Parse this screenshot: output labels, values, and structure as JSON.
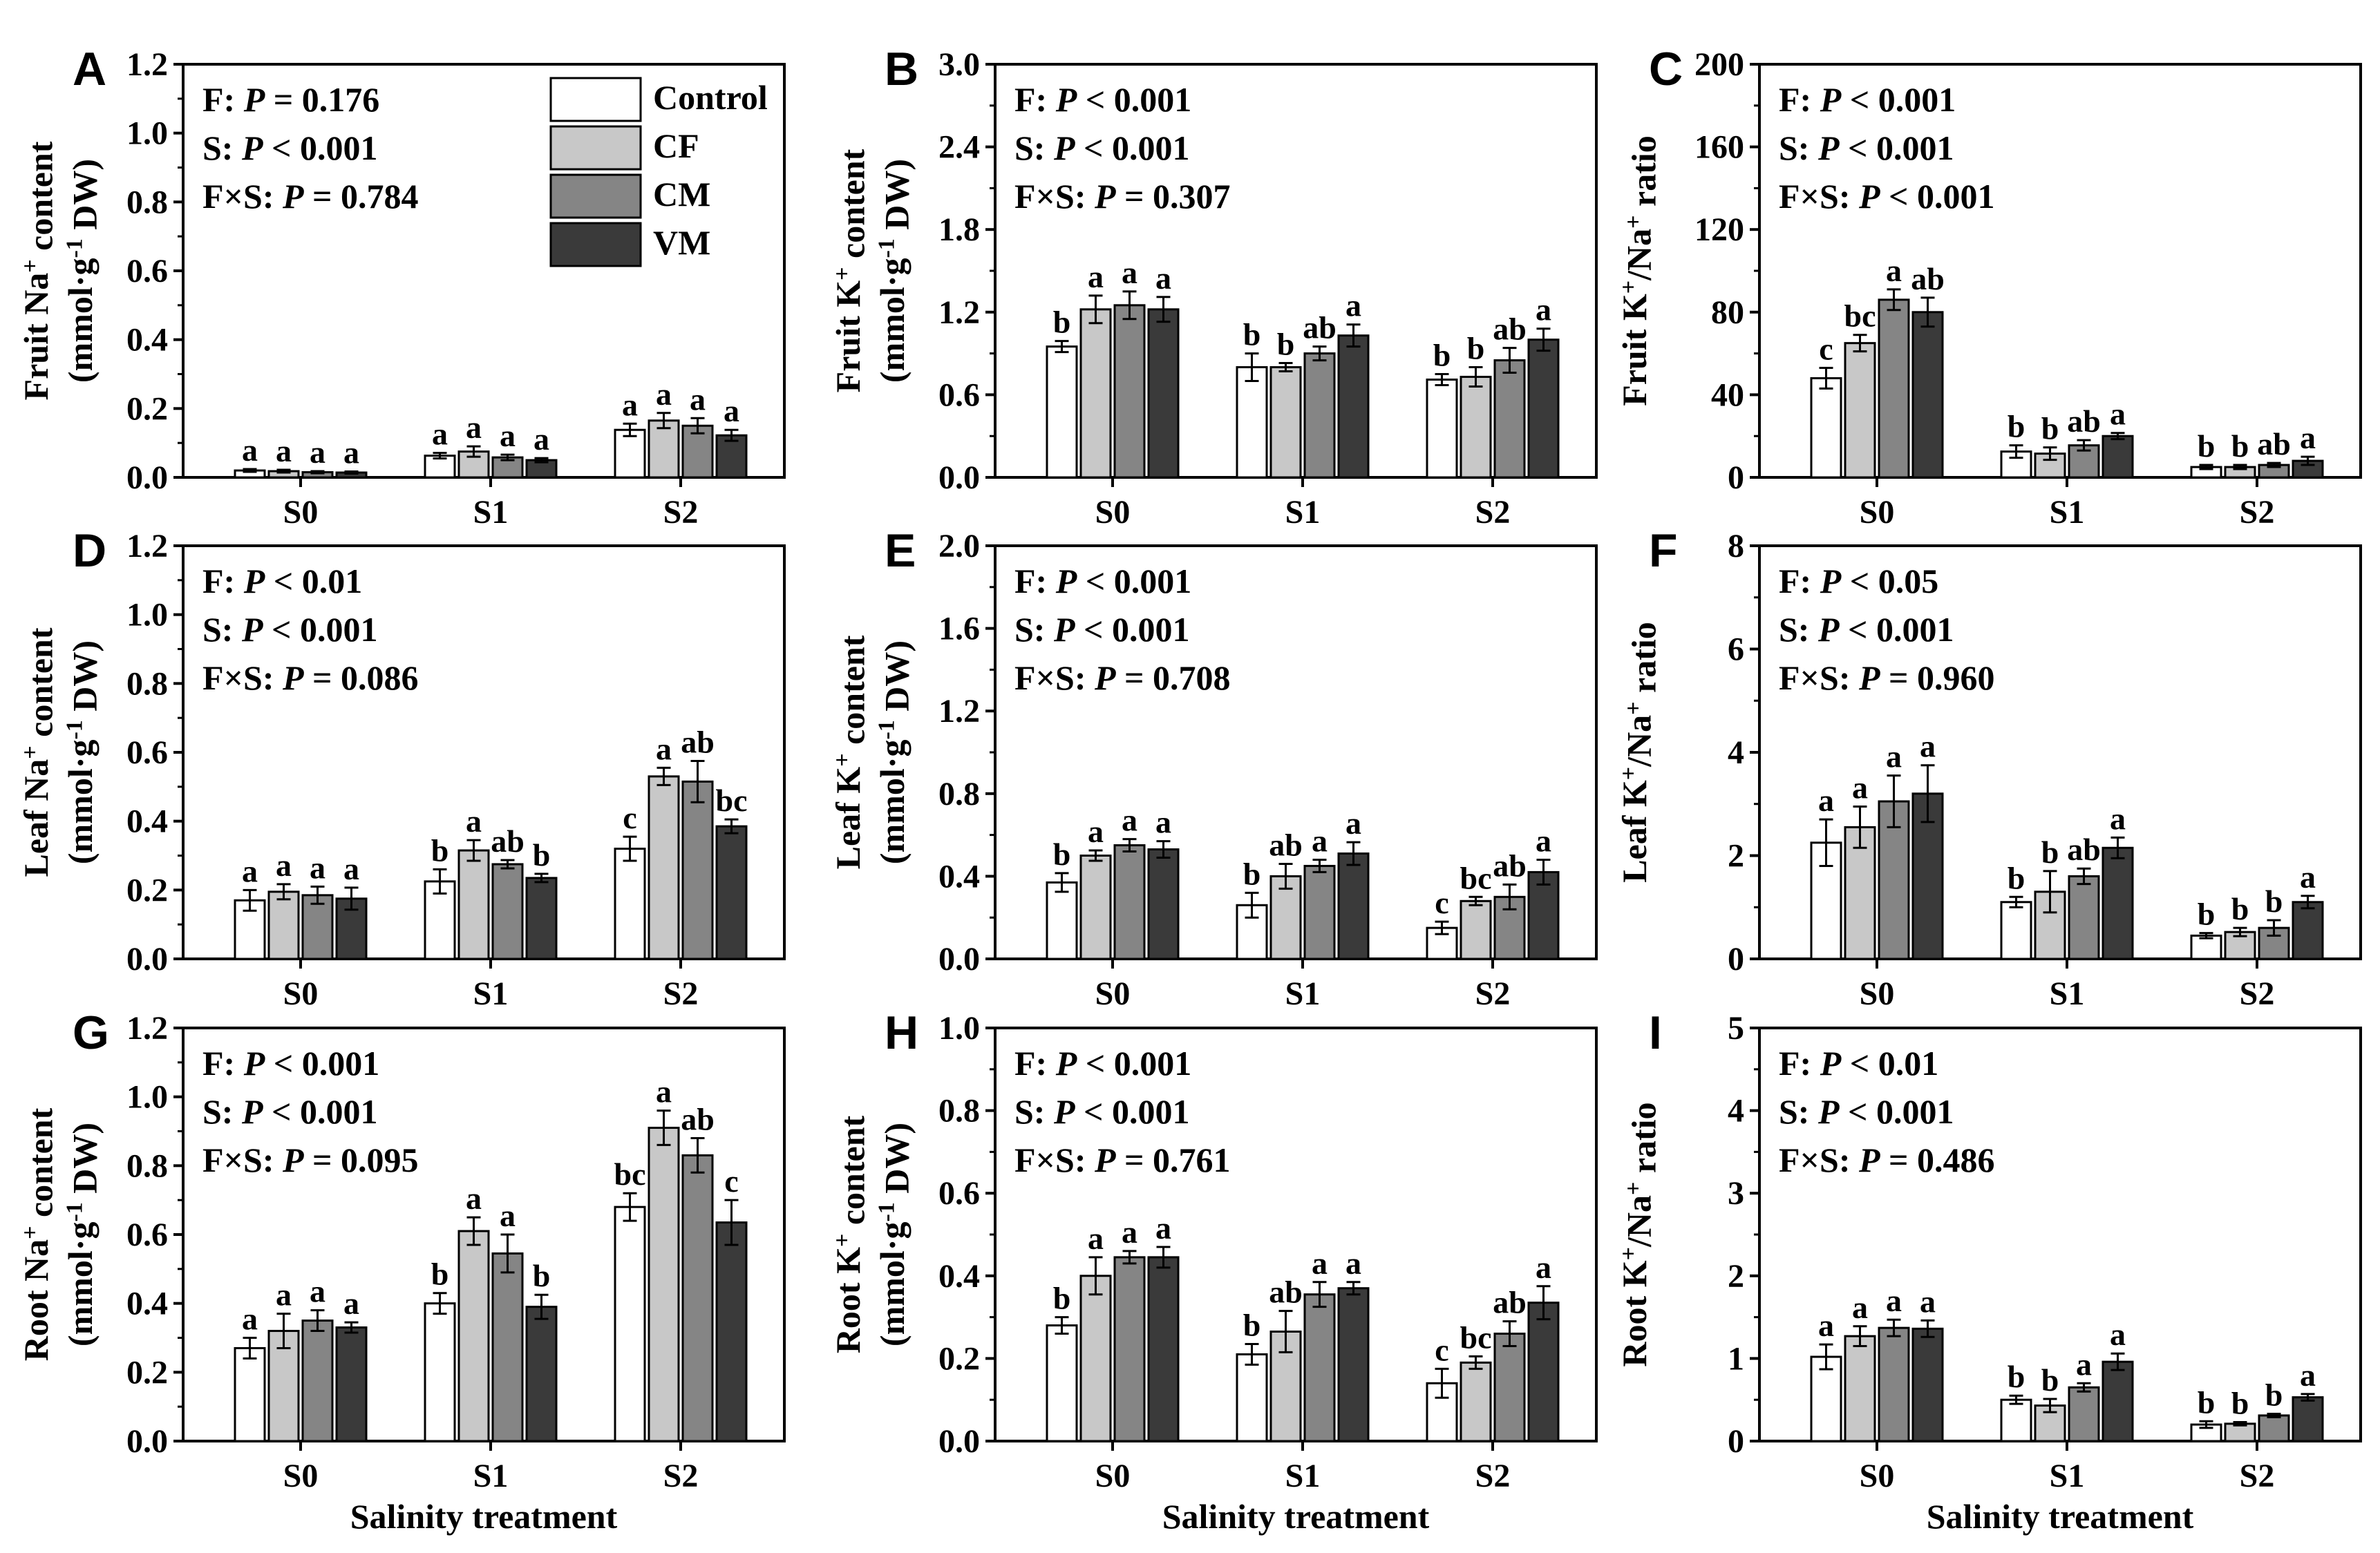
{
  "legend": {
    "series": [
      {
        "name": "Control",
        "color": "#ffffff"
      },
      {
        "name": "CF",
        "color": "#c8c8c8"
      },
      {
        "name": "CM",
        "color": "#858585"
      },
      {
        "name": "VM",
        "color": "#3a3a3a"
      }
    ]
  },
  "colors": {
    "stroke": "#000000",
    "background": "#ffffff"
  },
  "xlabel": "Salinity treatment",
  "chart_data": [
    {
      "panel": "A",
      "type": "bar",
      "title": "",
      "ylabel": [
        "Fruit Na+ content",
        "(mmol·g-1 DW)"
      ],
      "ylim": [
        0,
        1.2
      ],
      "yticks": [
        "0.0",
        "0.2",
        "0.4",
        "0.6",
        "0.8",
        "1.0",
        "1.2"
      ],
      "categories": [
        "S0",
        "S1",
        "S2"
      ],
      "stats": [
        {
          "label": "F: ",
          "sym": "P",
          "rel": " = 0.176"
        },
        {
          "label": "S: ",
          "sym": "P",
          "rel": " < 0.001"
        },
        {
          "label": "F×S: ",
          "sym": "P",
          "rel": " = 0.784"
        }
      ],
      "series": [
        {
          "name": "Control",
          "values": [
            0.02,
            0.063,
            0.138
          ],
          "errors": [
            0.004,
            0.008,
            0.018
          ],
          "letters": [
            "a",
            "a",
            "a"
          ]
        },
        {
          "name": "CF",
          "values": [
            0.018,
            0.075,
            0.165
          ],
          "errors": [
            0.004,
            0.015,
            0.022
          ],
          "letters": [
            "a",
            "a",
            "a"
          ]
        },
        {
          "name": "CM",
          "values": [
            0.015,
            0.058,
            0.15
          ],
          "errors": [
            0.003,
            0.008,
            0.022
          ],
          "letters": [
            "a",
            "a",
            "a"
          ]
        },
        {
          "name": "VM",
          "values": [
            0.014,
            0.05,
            0.122
          ],
          "errors": [
            0.003,
            0.006,
            0.016
          ],
          "letters": [
            "a",
            "a",
            "a"
          ]
        }
      ]
    },
    {
      "panel": "B",
      "type": "bar",
      "title": "",
      "ylabel": [
        "Fruit K+ content",
        "(mmol·g-1 DW)"
      ],
      "ylim": [
        0,
        3.0
      ],
      "yticks": [
        "0.0",
        "0.6",
        "1.2",
        "1.8",
        "2.4",
        "3.0"
      ],
      "categories": [
        "S0",
        "S1",
        "S2"
      ],
      "stats": [
        {
          "label": "F: ",
          "sym": "P",
          "rel": " < 0.001"
        },
        {
          "label": "S: ",
          "sym": "P",
          "rel": " < 0.001"
        },
        {
          "label": "F×S: ",
          "sym": "P",
          "rel": " = 0.307"
        }
      ],
      "series": [
        {
          "name": "Control",
          "values": [
            0.95,
            0.8,
            0.71
          ],
          "errors": [
            0.04,
            0.1,
            0.04
          ],
          "letters": [
            "b",
            "b",
            "b"
          ]
        },
        {
          "name": "CF",
          "values": [
            1.22,
            0.8,
            0.73
          ],
          "errors": [
            0.1,
            0.03,
            0.07
          ],
          "letters": [
            "a",
            "b",
            "b"
          ]
        },
        {
          "name": "CM",
          "values": [
            1.25,
            0.9,
            0.85
          ],
          "errors": [
            0.1,
            0.05,
            0.09
          ],
          "letters": [
            "a",
            "ab",
            "ab"
          ]
        },
        {
          "name": "VM",
          "values": [
            1.22,
            1.03,
            1.0
          ],
          "errors": [
            0.09,
            0.08,
            0.08
          ],
          "letters": [
            "a",
            "a",
            "a"
          ]
        }
      ]
    },
    {
      "panel": "C",
      "type": "bar",
      "title": "",
      "ylabel": [
        "Fruit K+/Na+ ratio"
      ],
      "ylim": [
        0,
        200
      ],
      "yticks": [
        "0",
        "40",
        "80",
        "120",
        "160",
        "200"
      ],
      "categories": [
        "S0",
        "S1",
        "S2"
      ],
      "stats": [
        {
          "label": "F: ",
          "sym": "P",
          "rel": " < 0.001"
        },
        {
          "label": "S: ",
          "sym": "P",
          "rel": " < 0.001"
        },
        {
          "label": "F×S: ",
          "sym": "P",
          "rel": " < 0.001"
        }
      ],
      "series": [
        {
          "name": "Control",
          "values": [
            48,
            12.5,
            5
          ],
          "errors": [
            5,
            3,
            1
          ],
          "letters": [
            "c",
            "b",
            "b"
          ]
        },
        {
          "name": "CF",
          "values": [
            65,
            11.5,
            5
          ],
          "errors": [
            4,
            3,
            1
          ],
          "letters": [
            "bc",
            "b",
            "b"
          ]
        },
        {
          "name": "CM",
          "values": [
            86,
            15.5,
            6
          ],
          "errors": [
            5,
            2.5,
            1
          ],
          "letters": [
            "a",
            "ab",
            "ab"
          ]
        },
        {
          "name": "VM",
          "values": [
            80,
            20,
            8
          ],
          "errors": [
            7,
            1.5,
            2
          ],
          "letters": [
            "ab",
            "a",
            "a"
          ]
        }
      ]
    },
    {
      "panel": "D",
      "type": "bar",
      "title": "",
      "ylabel": [
        "Leaf Na+ content",
        "(mmol·g-1 DW)"
      ],
      "ylim": [
        0,
        1.2
      ],
      "yticks": [
        "0.0",
        "0.2",
        "0.4",
        "0.6",
        "0.8",
        "1.0",
        "1.2"
      ],
      "categories": [
        "S0",
        "S1",
        "S2"
      ],
      "stats": [
        {
          "label": "F: ",
          "sym": "P",
          "rel": " < 0.01"
        },
        {
          "label": "S: ",
          "sym": "P",
          "rel": " < 0.001"
        },
        {
          "label": "F×S: ",
          "sym": "P",
          "rel": " = 0.086"
        }
      ],
      "series": [
        {
          "name": "Control",
          "values": [
            0.17,
            0.225,
            0.32
          ],
          "errors": [
            0.03,
            0.035,
            0.035
          ],
          "letters": [
            "a",
            "b",
            "c"
          ]
        },
        {
          "name": "CF",
          "values": [
            0.195,
            0.315,
            0.53
          ],
          "errors": [
            0.022,
            0.03,
            0.025
          ],
          "letters": [
            "a",
            "a",
            "a"
          ]
        },
        {
          "name": "CM",
          "values": [
            0.185,
            0.275,
            0.515
          ],
          "errors": [
            0.025,
            0.012,
            0.06
          ],
          "letters": [
            "a",
            "ab",
            "ab"
          ]
        },
        {
          "name": "VM",
          "values": [
            0.175,
            0.235,
            0.385
          ],
          "errors": [
            0.032,
            0.012,
            0.02
          ],
          "letters": [
            "a",
            "b",
            "bc"
          ]
        }
      ]
    },
    {
      "panel": "E",
      "type": "bar",
      "title": "",
      "ylabel": [
        "Leaf K+ content",
        "(mmol·g-1 DW)"
      ],
      "ylim": [
        0,
        2.0
      ],
      "yticks": [
        "0.0",
        "0.4",
        "0.8",
        "1.2",
        "1.6",
        "2.0"
      ],
      "categories": [
        "S0",
        "S1",
        "S2"
      ],
      "stats": [
        {
          "label": "F: ",
          "sym": "P",
          "rel": " < 0.001"
        },
        {
          "label": "S: ",
          "sym": "P",
          "rel": " < 0.001"
        },
        {
          "label": "F×S: ",
          "sym": "P",
          "rel": " = 0.708"
        }
      ],
      "series": [
        {
          "name": "Control",
          "values": [
            0.37,
            0.26,
            0.15
          ],
          "errors": [
            0.045,
            0.06,
            0.03
          ],
          "letters": [
            "b",
            "b",
            "c"
          ]
        },
        {
          "name": "CF",
          "values": [
            0.5,
            0.4,
            0.28
          ],
          "errors": [
            0.025,
            0.06,
            0.02
          ],
          "letters": [
            "a",
            "ab",
            "bc"
          ]
        },
        {
          "name": "CM",
          "values": [
            0.55,
            0.45,
            0.3
          ],
          "errors": [
            0.03,
            0.03,
            0.06
          ],
          "letters": [
            "a",
            "a",
            "ab"
          ]
        },
        {
          "name": "VM",
          "values": [
            0.53,
            0.51,
            0.42
          ],
          "errors": [
            0.04,
            0.055,
            0.06
          ],
          "letters": [
            "a",
            "a",
            "a"
          ]
        }
      ]
    },
    {
      "panel": "F",
      "type": "bar",
      "title": "",
      "ylabel": [
        "Leaf K+/Na+ ratio"
      ],
      "ylim": [
        0,
        8
      ],
      "yticks": [
        "0",
        "2",
        "4",
        "6",
        "8"
      ],
      "categories": [
        "S0",
        "S1",
        "S2"
      ],
      "stats": [
        {
          "label": "F: ",
          "sym": "P",
          "rel": " < 0.05"
        },
        {
          "label": "S: ",
          "sym": "P",
          "rel": " < 0.001"
        },
        {
          "label": "F×S: ",
          "sym": "P",
          "rel": " = 0.960"
        }
      ],
      "series": [
        {
          "name": "Control",
          "values": [
            2.25,
            1.1,
            0.45
          ],
          "errors": [
            0.45,
            0.1,
            0.05
          ],
          "letters": [
            "a",
            "b",
            "b"
          ]
        },
        {
          "name": "CF",
          "values": [
            2.55,
            1.3,
            0.52
          ],
          "errors": [
            0.4,
            0.4,
            0.08
          ],
          "letters": [
            "a",
            "b",
            "b"
          ]
        },
        {
          "name": "CM",
          "values": [
            3.05,
            1.6,
            0.6
          ],
          "errors": [
            0.5,
            0.15,
            0.15
          ],
          "letters": [
            "a",
            "ab",
            "b"
          ]
        },
        {
          "name": "VM",
          "values": [
            3.2,
            2.15,
            1.1
          ],
          "errors": [
            0.55,
            0.2,
            0.12
          ],
          "letters": [
            "a",
            "a",
            "a"
          ]
        }
      ]
    },
    {
      "panel": "G",
      "type": "bar",
      "title": "",
      "ylabel": [
        "Root Na+ content",
        "(mmol·g-1 DW)"
      ],
      "ylim": [
        0,
        1.2
      ],
      "yticks": [
        "0.0",
        "0.2",
        "0.4",
        "0.6",
        "0.8",
        "1.0",
        "1.2"
      ],
      "categories": [
        "S0",
        "S1",
        "S2"
      ],
      "stats": [
        {
          "label": "F: ",
          "sym": "P",
          "rel": " < 0.001"
        },
        {
          "label": "S: ",
          "sym": "P",
          "rel": " < 0.001"
        },
        {
          "label": "F×S: ",
          "sym": "P",
          "rel": " = 0.095"
        }
      ],
      "series": [
        {
          "name": "Control",
          "values": [
            0.27,
            0.4,
            0.68
          ],
          "errors": [
            0.03,
            0.03,
            0.04
          ],
          "letters": [
            "a",
            "b",
            "bc"
          ]
        },
        {
          "name": "CF",
          "values": [
            0.32,
            0.61,
            0.91
          ],
          "errors": [
            0.05,
            0.04,
            0.05
          ],
          "letters": [
            "a",
            "a",
            "a"
          ]
        },
        {
          "name": "CM",
          "values": [
            0.35,
            0.545,
            0.83
          ],
          "errors": [
            0.03,
            0.055,
            0.05
          ],
          "letters": [
            "a",
            "a",
            "ab"
          ]
        },
        {
          "name": "VM",
          "values": [
            0.33,
            0.39,
            0.635
          ],
          "errors": [
            0.015,
            0.035,
            0.065
          ],
          "letters": [
            "a",
            "b",
            "c"
          ]
        }
      ]
    },
    {
      "panel": "H",
      "type": "bar",
      "title": "",
      "ylabel": [
        "Root K+ content",
        "(mmol·g-1 DW)"
      ],
      "ylim": [
        0,
        1.0
      ],
      "yticks": [
        "0.0",
        "0.2",
        "0.4",
        "0.6",
        "0.8",
        "1.0"
      ],
      "categories": [
        "S0",
        "S1",
        "S2"
      ],
      "stats": [
        {
          "label": "F: ",
          "sym": "P",
          "rel": " < 0.001"
        },
        {
          "label": "S: ",
          "sym": "P",
          "rel": " < 0.001"
        },
        {
          "label": "F×S: ",
          "sym": "P",
          "rel": " = 0.761"
        }
      ],
      "series": [
        {
          "name": "Control",
          "values": [
            0.28,
            0.21,
            0.14
          ],
          "errors": [
            0.02,
            0.025,
            0.035
          ],
          "letters": [
            "b",
            "b",
            "c"
          ]
        },
        {
          "name": "CF",
          "values": [
            0.4,
            0.265,
            0.19
          ],
          "errors": [
            0.045,
            0.05,
            0.015
          ],
          "letters": [
            "a",
            "ab",
            "bc"
          ]
        },
        {
          "name": "CM",
          "values": [
            0.445,
            0.355,
            0.26
          ],
          "errors": [
            0.015,
            0.03,
            0.03
          ],
          "letters": [
            "a",
            "a",
            "ab"
          ]
        },
        {
          "name": "VM",
          "values": [
            0.445,
            0.37,
            0.335
          ],
          "errors": [
            0.025,
            0.015,
            0.04
          ],
          "letters": [
            "a",
            "a",
            "a"
          ]
        }
      ]
    },
    {
      "panel": "I",
      "type": "bar",
      "title": "",
      "ylabel": [
        "Root K+/Na+ ratio"
      ],
      "ylim": [
        0,
        5
      ],
      "yticks": [
        "0",
        "1",
        "2",
        "3",
        "4",
        "5"
      ],
      "categories": [
        "S0",
        "S1",
        "S2"
      ],
      "stats": [
        {
          "label": "F: ",
          "sym": "P",
          "rel": " < 0.01"
        },
        {
          "label": "S: ",
          "sym": "P",
          "rel": " < 0.001"
        },
        {
          "label": "F×S: ",
          "sym": "P",
          "rel": " = 0.486"
        }
      ],
      "series": [
        {
          "name": "Control",
          "values": [
            1.02,
            0.5,
            0.2
          ],
          "errors": [
            0.15,
            0.05,
            0.04
          ],
          "letters": [
            "a",
            "b",
            "b"
          ]
        },
        {
          "name": "CF",
          "values": [
            1.27,
            0.43,
            0.21
          ],
          "errors": [
            0.12,
            0.08,
            0.02
          ],
          "letters": [
            "a",
            "b",
            "b"
          ]
        },
        {
          "name": "CM",
          "values": [
            1.37,
            0.65,
            0.31
          ],
          "errors": [
            0.1,
            0.05,
            0.02
          ],
          "letters": [
            "a",
            "a",
            "b"
          ]
        },
        {
          "name": "VM",
          "values": [
            1.36,
            0.96,
            0.53
          ],
          "errors": [
            0.1,
            0.1,
            0.04
          ],
          "letters": [
            "a",
            "a",
            "a"
          ]
        }
      ]
    }
  ]
}
